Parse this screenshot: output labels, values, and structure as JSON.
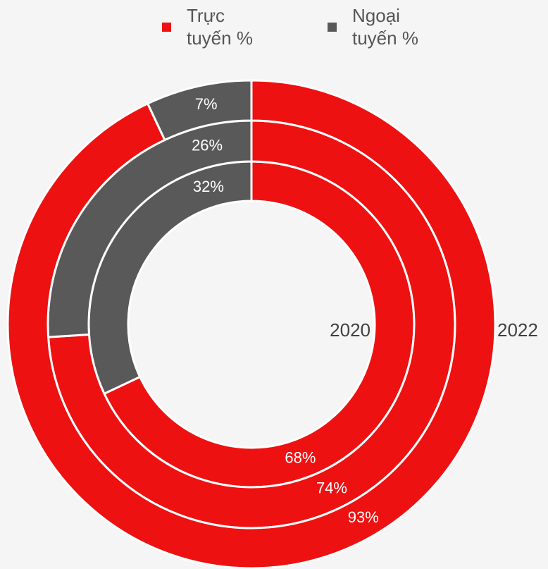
{
  "chart_data": {
    "type": "donut",
    "categories": [
      "Trực tuyến %",
      "Ngoại tuyến %"
    ],
    "colors": [
      "#ee1111",
      "#595959"
    ],
    "series": [
      {
        "name": "2020",
        "values": [
          68,
          32
        ],
        "value_labels": [
          "68%",
          "32%"
        ]
      },
      {
        "name": null,
        "values": [
          74,
          26
        ],
        "value_labels": [
          "74%",
          "26%"
        ]
      },
      {
        "name": "2022",
        "values": [
          93,
          7
        ],
        "value_labels": [
          "93%",
          "7%"
        ]
      }
    ],
    "legend": "top"
  }
}
